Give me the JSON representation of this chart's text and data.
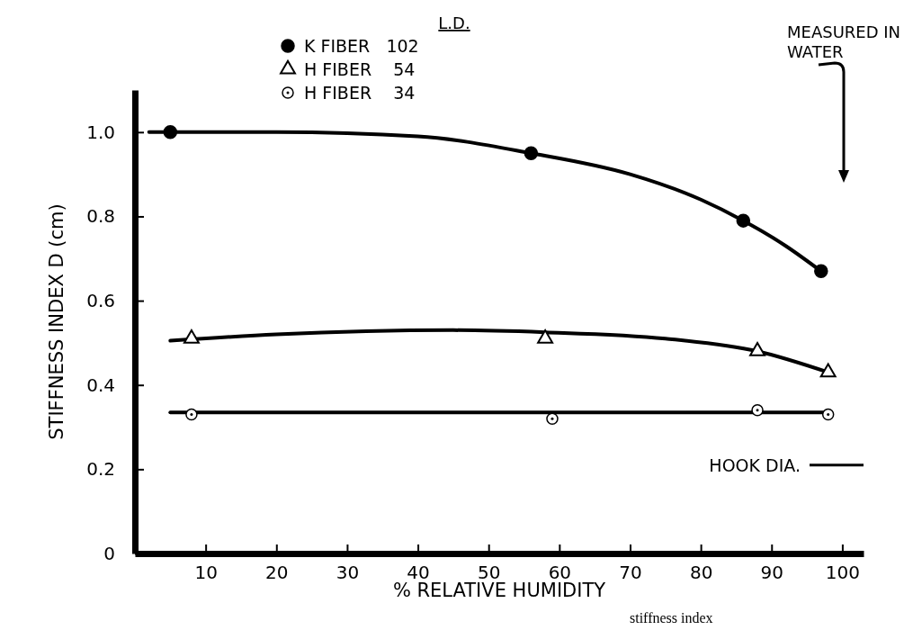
{
  "chart_data": {
    "type": "scatter",
    "xlabel": "% RELATIVE HUMIDITY",
    "ylabel": "STIFFNESS INDEX  D (cm)",
    "legend_title": "L.D.",
    "legend": "top",
    "xlim": [
      0,
      103
    ],
    "xticks": [
      10,
      20,
      30,
      40,
      50,
      60,
      70,
      80,
      90,
      100
    ],
    "ylim": [
      0,
      1.1
    ],
    "yticks": [
      0,
      0.2,
      0.4,
      0.6,
      0.8,
      {
        "value": 1,
        "label": "1.0"
      }
    ],
    "series": [
      {
        "type": "line",
        "color": "#000000",
        "marker": "none",
        "x": [
          2,
          20,
          40,
          56,
          70,
          80,
          86,
          92,
          97
        ],
        "values": [
          1.0,
          1.0,
          0.99,
          0.95,
          0.9,
          0.84,
          0.79,
          0.73,
          0.67
        ]
      },
      {
        "type": "line",
        "color": "#000000",
        "marker": "none",
        "x": [
          5,
          20,
          45,
          58,
          75,
          88,
          98
        ],
        "values": [
          0.505,
          0.52,
          0.53,
          0.525,
          0.51,
          0.48,
          0.43
        ]
      },
      {
        "type": "line",
        "color": "#000000",
        "marker": "none",
        "x": [
          5,
          98
        ],
        "values": [
          0.335,
          0.335
        ]
      },
      {
        "name": "K FIBER   102",
        "color": "#000000",
        "marker": "circle",
        "x": [
          5,
          56,
          86,
          97
        ],
        "values": [
          1.0,
          0.95,
          0.79,
          0.67
        ]
      },
      {
        "name": "H FIBER    54",
        "color": "#ffffff",
        "marker": "triangle",
        "x": [
          8,
          58,
          88,
          98
        ],
        "values": [
          0.51,
          0.51,
          0.48,
          0.43
        ]
      },
      {
        "name": "H FIBER    34",
        "color": "#ffffff",
        "marker": "circle",
        "x": [
          8,
          59,
          88,
          98
        ],
        "values": [
          0.33,
          0.32,
          0.34,
          0.33
        ]
      }
    ],
    "ref_lines": [
      {
        "axis": "y",
        "value": 0.21,
        "label": "HOOK DIA.",
        "color": "#000000"
      }
    ],
    "annotations": [
      "MEASURED IN WATER",
      "stiffness index"
    ]
  }
}
